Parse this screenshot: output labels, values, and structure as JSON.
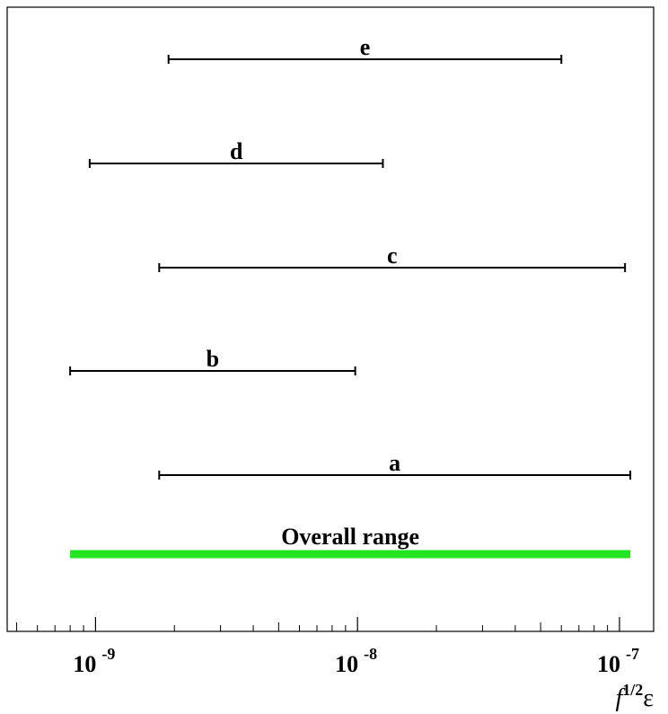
{
  "chart_data": {
    "type": "range",
    "xscale": "log",
    "xlim": [
      4.6e-10,
      1.35e-07
    ],
    "xlabel": {
      "base": "f",
      "superscript": "1/2",
      "suffix": "ε"
    },
    "ticks": [
      {
        "value": 1e-09,
        "base": "10",
        "exponent": "-9"
      },
      {
        "value": 1e-08,
        "base": "10",
        "exponent": "-8"
      },
      {
        "value": 1e-07,
        "base": "10",
        "exponent": "-7"
      }
    ],
    "series": [
      {
        "name": "e",
        "low": 1.9e-09,
        "high": 6e-08,
        "color": "#000000",
        "kind": "errorbar"
      },
      {
        "name": "d",
        "low": 9.5e-10,
        "high": 1.25e-08,
        "color": "#000000",
        "kind": "errorbar"
      },
      {
        "name": "c",
        "low": 1.75e-09,
        "high": 1.05e-07,
        "color": "#000000",
        "kind": "errorbar"
      },
      {
        "name": "b",
        "low": 8e-10,
        "high": 9.8e-09,
        "color": "#000000",
        "kind": "errorbar"
      },
      {
        "name": "a",
        "low": 1.75e-09,
        "high": 1.1e-07,
        "color": "#000000",
        "kind": "errorbar"
      },
      {
        "name": "Overall range",
        "low": 8e-10,
        "high": 1.1e-07,
        "color": "#22e622",
        "kind": "band"
      }
    ],
    "grid": false
  }
}
